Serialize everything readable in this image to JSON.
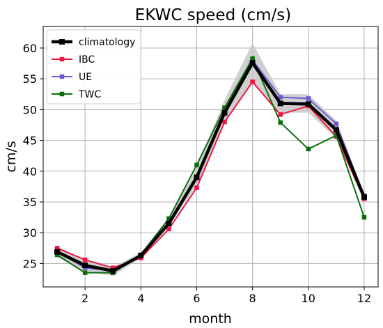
{
  "chart_data": {
    "type": "line",
    "title": "EKWC speed (cm/s)",
    "xlabel": "month",
    "ylabel": "cm/s",
    "xlim": [
      0.5,
      12.5
    ],
    "ylim": [
      21.2,
      63.5
    ],
    "xticks": [
      2,
      4,
      6,
      8,
      10,
      12
    ],
    "yticks": [
      25,
      30,
      35,
      40,
      45,
      50,
      55,
      60
    ],
    "grid": true,
    "legend": "top-left",
    "x": [
      1,
      2,
      3,
      4,
      5,
      6,
      7,
      8,
      9,
      10,
      11,
      12
    ],
    "band": {
      "lower": [
        26.0,
        23.7,
        23.0,
        25.9,
        31.0,
        37.6,
        47.9,
        54.3,
        49.5,
        49.5,
        45.3,
        35.0
      ],
      "upper": [
        27.8,
        25.5,
        24.4,
        26.8,
        32.3,
        40.5,
        51.6,
        60.8,
        52.5,
        52.5,
        48.2,
        36.2
      ],
      "color": "#c8c8c8"
    },
    "series": [
      {
        "name": "IBC",
        "color": "#ee1744",
        "width": 2,
        "values": [
          27.5,
          25.6,
          24.3,
          25.9,
          30.6,
          37.3,
          48.0,
          54.5,
          49.2,
          50.6,
          45.6,
          35.5
        ]
      },
      {
        "name": "UE",
        "color": "#6a5acd",
        "width": 2,
        "values": [
          26.9,
          24.3,
          23.8,
          26.2,
          31.4,
          38.9,
          49.3,
          58.0,
          52.0,
          51.8,
          47.7,
          36.0
        ]
      },
      {
        "name": "TWC",
        "color": "#0b6e0b",
        "width": 2,
        "values": [
          26.4,
          23.5,
          23.5,
          26.4,
          32.3,
          41.0,
          50.3,
          58.3,
          47.9,
          43.6,
          45.8,
          32.5
        ]
      },
      {
        "name": "climatology",
        "color": "#000000",
        "width": 4.5,
        "values": [
          26.9,
          24.7,
          23.8,
          26.3,
          31.5,
          39.0,
          49.5,
          57.6,
          51.0,
          50.9,
          46.7,
          35.8
        ]
      }
    ],
    "legend_order": [
      "climatology",
      "IBC",
      "UE",
      "TWC"
    ]
  }
}
